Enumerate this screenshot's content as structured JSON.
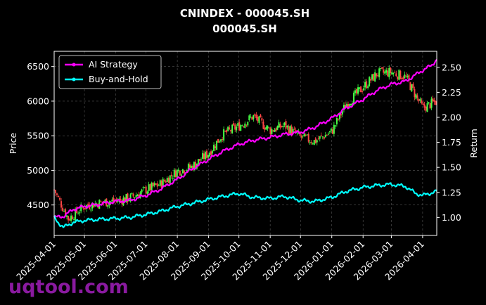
{
  "chart_data": {
    "type": "line",
    "title": "CNINDEX - 000045.SH",
    "subtitle": "000045.SH",
    "ylabel": "Price",
    "ylabel_right": "Return",
    "xlabel": "",
    "x_ticks": [
      "2025-04-01",
      "2025-05-01",
      "2025-06-01",
      "2025-07-01",
      "2025-08-01",
      "2025-09-01",
      "2025-10-01",
      "2025-11-01",
      "2025-12-01",
      "2026-01-01",
      "2026-02-01",
      "2026-03-01",
      "2026-04-01"
    ],
    "x_range": [
      "2025-04-01",
      "2026-04-15"
    ],
    "y_left_ticks": [
      4500,
      5000,
      5500,
      6000,
      6500
    ],
    "y_left_range": [
      4060,
      6720
    ],
    "y_right_ticks": [
      1.0,
      1.25,
      1.5,
      1.75,
      2.0,
      2.25,
      2.5
    ],
    "y_right_tick_labels": [
      "1.00",
      "1.25",
      "1.50",
      "1.75",
      "2.00",
      "2.25",
      "2.50"
    ],
    "y_right_range": [
      0.82,
      2.66
    ],
    "grid": true,
    "legend_position": "top-left",
    "candles": {
      "name": "",
      "up_color": "#44ff44",
      "down_color": "#ff4444",
      "dates": [
        "2025-04-01",
        "2025-04-15",
        "2025-05-01",
        "2025-05-15",
        "2025-06-01",
        "2025-06-15",
        "2025-07-01",
        "2025-07-15",
        "2025-08-01",
        "2025-08-15",
        "2025-09-01",
        "2025-09-15",
        "2025-10-01",
        "2025-10-15",
        "2025-11-01",
        "2025-11-15",
        "2025-12-01",
        "2025-12-15",
        "2026-01-01",
        "2026-01-15",
        "2026-02-01",
        "2026-02-15",
        "2026-03-01",
        "2026-03-15",
        "2026-04-01",
        "2026-04-15"
      ],
      "close": [
        4720,
        4300,
        4480,
        4530,
        4560,
        4600,
        4720,
        4800,
        4990,
        5050,
        5250,
        5520,
        5640,
        5780,
        5580,
        5650,
        5480,
        5420,
        5560,
        5950,
        6200,
        6400,
        6420,
        6350,
        5900,
        6000
      ]
    },
    "series": [
      {
        "name": "AI Strategy",
        "color": "#ff00ff",
        "x": [
          "2025-04-01",
          "2025-04-10",
          "2025-04-20",
          "2025-05-01",
          "2025-05-15",
          "2025-06-01",
          "2025-06-15",
          "2025-07-01",
          "2025-07-15",
          "2025-08-01",
          "2025-08-15",
          "2025-09-01",
          "2025-09-15",
          "2025-10-01",
          "2025-10-15",
          "2025-11-01",
          "2025-11-15",
          "2025-12-01",
          "2025-12-15",
          "2026-01-01",
          "2026-01-15",
          "2026-02-01",
          "2026-02-15",
          "2026-03-01",
          "2026-03-15",
          "2026-04-01",
          "2026-04-10",
          "2026-04-15"
        ],
        "y": [
          1.0,
          1.01,
          1.08,
          1.11,
          1.13,
          1.16,
          1.17,
          1.22,
          1.28,
          1.38,
          1.48,
          1.58,
          1.66,
          1.73,
          1.77,
          1.8,
          1.83,
          1.85,
          1.9,
          1.99,
          2.09,
          2.18,
          2.27,
          2.33,
          2.36,
          2.47,
          2.52,
          2.58
        ]
      },
      {
        "name": "Buy-and-Hold",
        "color": "#00ffff",
        "x": [
          "2025-04-01",
          "2025-04-05",
          "2025-04-10",
          "2025-04-20",
          "2025-05-01",
          "2025-05-15",
          "2025-06-01",
          "2025-06-15",
          "2025-07-01",
          "2025-07-15",
          "2025-08-01",
          "2025-08-15",
          "2025-09-01",
          "2025-09-15",
          "2025-10-01",
          "2025-10-15",
          "2025-11-01",
          "2025-11-15",
          "2025-12-01",
          "2025-12-15",
          "2026-01-01",
          "2026-01-15",
          "2026-02-01",
          "2026-02-15",
          "2026-03-01",
          "2026-03-15",
          "2026-03-25",
          "2026-04-01",
          "2026-04-15"
        ],
        "y": [
          1.0,
          0.95,
          0.9,
          0.95,
          0.97,
          0.98,
          0.99,
          1.0,
          1.03,
          1.06,
          1.11,
          1.14,
          1.18,
          1.21,
          1.24,
          1.2,
          1.19,
          1.21,
          1.17,
          1.16,
          1.2,
          1.26,
          1.3,
          1.32,
          1.33,
          1.31,
          1.24,
          1.22,
          1.26
        ]
      }
    ]
  },
  "watermark": "uqtool.com"
}
